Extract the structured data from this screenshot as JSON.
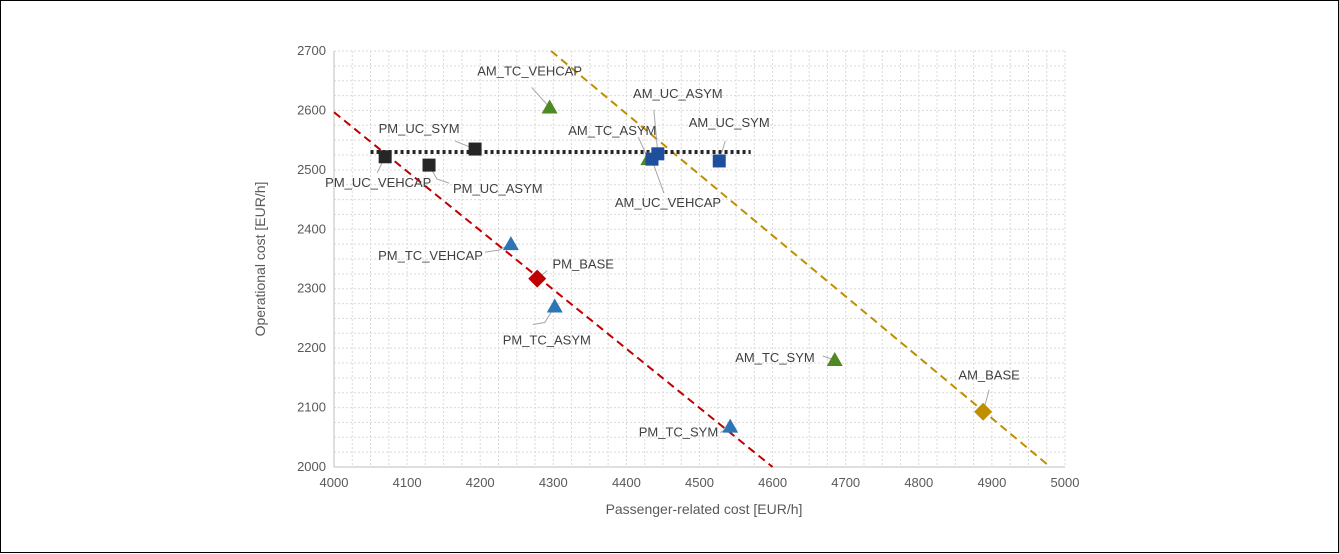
{
  "chart_data": {
    "type": "scatter",
    "xlabel": "Passenger-related cost [EUR/h]",
    "ylabel": "Operational cost [EUR/h]",
    "xlim": [
      4000,
      5000
    ],
    "ylim": [
      2000,
      2700
    ],
    "x_ticks": [
      "4000",
      "4100",
      "4200",
      "4300",
      "4400",
      "4500",
      "4600",
      "4700",
      "4800",
      "4900",
      "5000"
    ],
    "y_ticks": [
      "2000",
      "2100",
      "2200",
      "2300",
      "2400",
      "2500",
      "2600",
      "2700"
    ],
    "grid": true,
    "colors": {
      "black": "#262626",
      "blue": "#2e75b6",
      "navy": "#1f4e9c",
      "green": "#4e8a22",
      "red": "#c00000",
      "gold": "#bf8f00"
    },
    "points": [
      {
        "label": "PM_UC_VEHCAP",
        "x": 4070,
        "y": 2522,
        "marker": "square",
        "color": "black"
      },
      {
        "label": "PM_UC_ASYM",
        "x": 4130,
        "y": 2508,
        "marker": "square",
        "color": "black"
      },
      {
        "label": "PM_UC_SYM",
        "x": 4193,
        "y": 2535,
        "marker": "square",
        "color": "black"
      },
      {
        "label": "PM_TC_VEHCAP",
        "x": 4242,
        "y": 2375,
        "marker": "triangle",
        "color": "blue"
      },
      {
        "label": "PM_BASE",
        "x": 4278,
        "y": 2317,
        "marker": "diamond",
        "color": "red"
      },
      {
        "label": "PM_TC_ASYM",
        "x": 4302,
        "y": 2270,
        "marker": "triangle",
        "color": "blue"
      },
      {
        "label": "PM_TC_SYM",
        "x": 4542,
        "y": 2068,
        "marker": "triangle",
        "color": "blue"
      },
      {
        "label": "AM_TC_VEHCAP",
        "x": 4295,
        "y": 2605,
        "marker": "triangle",
        "color": "green"
      },
      {
        "label": "AM_TC_ASYM",
        "x": 4430,
        "y": 2518,
        "marker": "triangle",
        "color": "green"
      },
      {
        "label": "AM_UC_VEHCAP",
        "x": 4435,
        "y": 2518,
        "marker": "square",
        "color": "navy"
      },
      {
        "label": "AM_UC_ASYM",
        "x": 4443,
        "y": 2527,
        "marker": "square",
        "color": "navy"
      },
      {
        "label": "AM_UC_SYM",
        "x": 4527,
        "y": 2515,
        "marker": "square",
        "color": "navy"
      },
      {
        "label": "AM_TC_SYM",
        "x": 4685,
        "y": 2180,
        "marker": "triangle",
        "color": "green"
      },
      {
        "label": "AM_BASE",
        "x": 4888,
        "y": 2093,
        "marker": "diamond",
        "color": "gold"
      }
    ],
    "lines": [
      {
        "style": "dashed",
        "color": "red",
        "from": [
          4000,
          2597
        ],
        "to": [
          4600,
          2000
        ]
      },
      {
        "style": "dashed",
        "color": "gold",
        "from": [
          4297,
          2700
        ],
        "to": [
          4980,
          2000
        ]
      },
      {
        "style": "dotted",
        "color": "black",
        "from": [
          4050,
          2530
        ],
        "to": [
          4570,
          2530
        ]
      }
    ]
  }
}
